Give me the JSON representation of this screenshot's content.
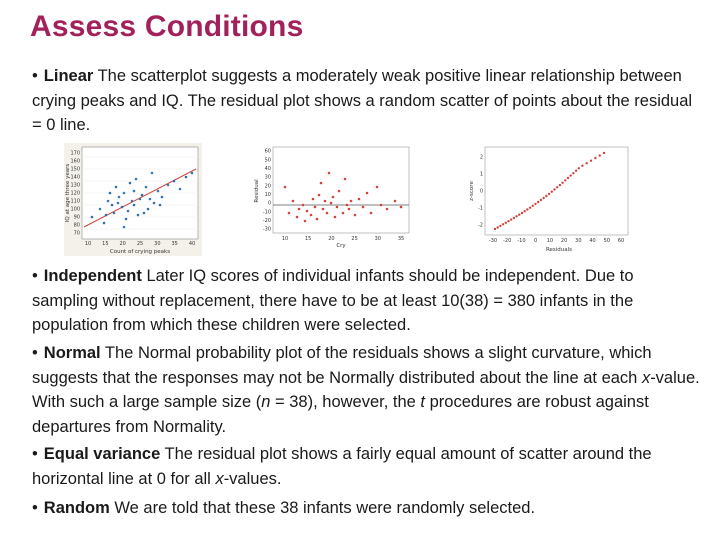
{
  "title": "Assess Conditions",
  "bullet": "•",
  "paragraphs": [
    {
      "head": "Linear",
      "text": " The scatterplot suggests a moderately weak positive linear relationship between crying peaks and IQ. The residual plot shows a random scatter of points about the residual = 0 line."
    },
    {
      "head": "Independent",
      "text": " Later IQ scores of individual infants should be independent. Due to sampling without replacement, there have to be at least 10(38) = 380 infants in the population from which these children were selected."
    },
    {
      "head": "Normal",
      "text_parts": [
        " The Normal probability plot of the residuals shows a slight curvature, which suggests that the responses may not be Normally distributed about the line at each ",
        "x",
        "-value. With such a large sample size (",
        "n",
        " = 38), however, the ",
        "t",
        " procedures are robust against departures from Normality."
      ]
    },
    {
      "head": "Equal variance",
      "text_parts": [
        " The residual plot shows a fairly equal amount of scatter around the horizontal line at 0 for all ",
        "x",
        "-values."
      ]
    },
    {
      "head": "Random",
      "text": " We are told that these 38 infants were randomly selected."
    }
  ],
  "plots": {
    "scatter": {
      "xlabel": "Count of crying peaks",
      "ylabel": "IQ at age three years",
      "xticks": [
        "10",
        "15",
        "20",
        "25",
        "30",
        "35",
        "40"
      ],
      "yticks": [
        "170",
        "160",
        "150",
        "140",
        "130",
        "120",
        "110",
        "100",
        "90",
        "80",
        "70"
      ]
    },
    "residual": {
      "xlabel": "Cry",
      "ylabel": "Residual",
      "xticks": [
        "10",
        "15",
        "20",
        "25",
        "30",
        "35"
      ],
      "yticks": [
        "60",
        "50",
        "40",
        "30",
        "20",
        "10",
        "0",
        "-10",
        "-20",
        "-30"
      ]
    },
    "normal": {
      "xlabel": "Residuals",
      "ylabel": "z-score",
      "xticks": [
        "-30",
        "-20",
        "-10",
        "0",
        "10",
        "20",
        "30",
        "40",
        "50",
        "60"
      ],
      "yticks": [
        "2",
        "1",
        "0",
        "-1",
        "-2"
      ]
    }
  },
  "colors": {
    "title": "#a3215a",
    "points_red": "#d0443c",
    "points_blue": "#3a78b5",
    "line": "#d0443c"
  }
}
